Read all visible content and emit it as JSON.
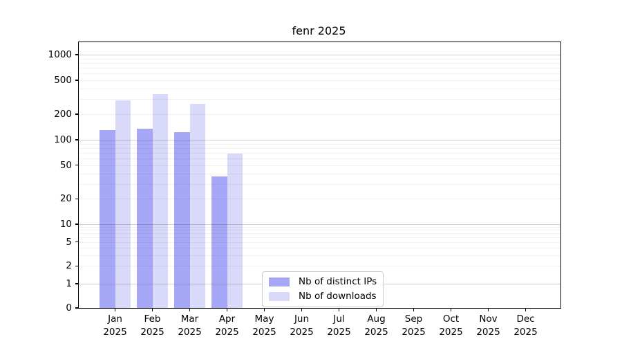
{
  "title": "fenr 2025",
  "chart_data": {
    "type": "bar",
    "title": "fenr 2025",
    "scale": "log-like (symlog with ticks 0,1,2,5,...,1000)",
    "categories": [
      "Jan",
      "Feb",
      "Mar",
      "Apr",
      "May",
      "Jun",
      "Jul",
      "Aug",
      "Sep",
      "Oct",
      "Nov",
      "Dec"
    ],
    "year": "2025",
    "xlabel": "",
    "ylabel": "",
    "yticks": [
      0,
      1,
      2,
      5,
      10,
      20,
      50,
      100,
      200,
      500,
      1000
    ],
    "ylim": [
      0,
      1400
    ],
    "grid": true,
    "legend_position": "inside plot, lower center-left",
    "series": [
      {
        "name": "Nb of distinct IPs",
        "color": "#a7a7f7",
        "values": [
          131,
          134,
          124,
          37,
          null,
          null,
          null,
          null,
          null,
          null,
          null,
          null
        ]
      },
      {
        "name": "Nb of downloads",
        "color": "#d9d9fa",
        "values": [
          288,
          341,
          267,
          69,
          null,
          null,
          null,
          null,
          null,
          null,
          null,
          null
        ]
      }
    ]
  },
  "colors": {
    "background": "#ffffff",
    "spine": "#000000",
    "major_grid": "#cccccc",
    "minor_grid": "#ececec",
    "legend_border": "#cccccc",
    "text": "#000000"
  }
}
